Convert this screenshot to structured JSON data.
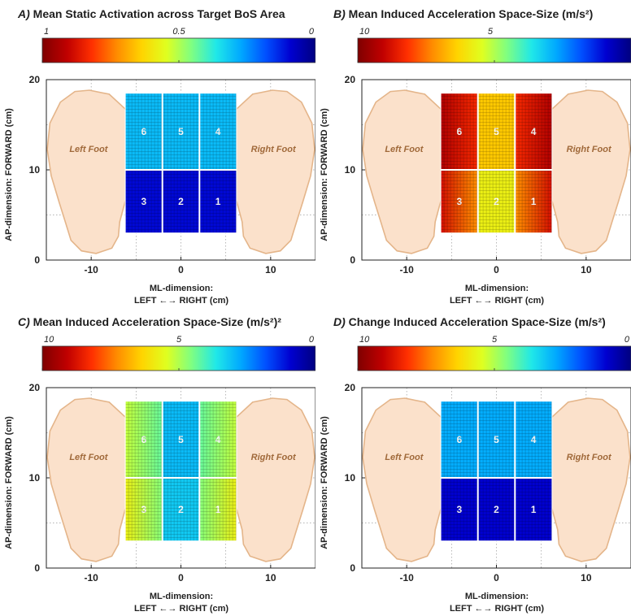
{
  "colorbar_colors": [
    "#7f0000",
    "#c00000",
    "#ff3000",
    "#ff8c00",
    "#ffd400",
    "#dfff20",
    "#80ff80",
    "#20e8e8",
    "#00a8ff",
    "#0050ff",
    "#0000d0",
    "#000080"
  ],
  "foot_labels": {
    "left": "Left Foot",
    "right": "Right Foot"
  },
  "axis_labels": {
    "y": "AP-dimension: FORWARD  (cm)",
    "x_line1": "ML-dimension:",
    "x_line2": "LEFT ←→ RIGHT (cm)"
  },
  "chart_data": [
    {
      "type": "heatmap",
      "letter": "A)",
      "title": "Mean Static Activation across Target BoS Area",
      "colorbar": {
        "ticks": [
          "1",
          "0.5",
          "0"
        ],
        "tick_values": [
          1,
          0.5,
          0
        ],
        "range": [
          1,
          0
        ]
      },
      "xlim": [
        -15,
        15
      ],
      "ylim": [
        0,
        20
      ],
      "xticks": [
        -10,
        0,
        10
      ],
      "yticks": [
        0,
        10,
        20
      ],
      "grid": true,
      "target_area": {
        "x": [
          -6.2,
          6.2
        ],
        "y": [
          3,
          18.5
        ]
      },
      "cells": [
        {
          "label": "6",
          "row": "top",
          "col": "left",
          "value": 0.3,
          "edge_value": 0.3
        },
        {
          "label": "5",
          "row": "top",
          "col": "middle",
          "value": 0.3,
          "edge_value": 0.3
        },
        {
          "label": "4",
          "row": "top",
          "col": "right",
          "value": 0.3,
          "edge_value": 0.3
        },
        {
          "label": "3",
          "row": "bottom",
          "col": "left",
          "value": 0.1,
          "edge_value": 0.1
        },
        {
          "label": "2",
          "row": "bottom",
          "col": "middle",
          "value": 0.1,
          "edge_value": 0.1
        },
        {
          "label": "1",
          "row": "bottom",
          "col": "right",
          "value": 0.1,
          "edge_value": 0.1
        }
      ]
    },
    {
      "type": "heatmap",
      "letter": "B)",
      "title": "Mean Induced Acceleration Space-Size (m/s²)",
      "colorbar": {
        "ticks": [
          "10",
          "5"
        ],
        "tick_values": [
          10,
          5
        ],
        "range": [
          10,
          0
        ]
      },
      "xlim": [
        -15,
        15
      ],
      "ylim": [
        0,
        20
      ],
      "xticks": [
        -10,
        0,
        10
      ],
      "yticks": [
        0,
        10,
        20
      ],
      "grid": true,
      "target_area": {
        "x": [
          -6.2,
          6.2
        ],
        "y": [
          3,
          18.5
        ]
      },
      "cells": [
        {
          "label": "6",
          "row": "top",
          "col": "left",
          "value": 8.3,
          "edge_value": 9.3
        },
        {
          "label": "5",
          "row": "top",
          "col": "middle",
          "value": 6.5,
          "edge_value": 6.5
        },
        {
          "label": "4",
          "row": "top",
          "col": "right",
          "value": 8.3,
          "edge_value": 9.3
        },
        {
          "label": "3",
          "row": "bottom",
          "col": "left",
          "value": 7.2,
          "edge_value": 8.8
        },
        {
          "label": "2",
          "row": "bottom",
          "col": "middle",
          "value": 5.8,
          "edge_value": 5.8
        },
        {
          "label": "1",
          "row": "bottom",
          "col": "right",
          "value": 7.2,
          "edge_value": 8.8
        }
      ]
    },
    {
      "type": "heatmap",
      "letter": "C)",
      "title": "Mean Induced Acceleration Space-Size (m/s²)²",
      "colorbar": {
        "ticks": [
          "10",
          "5",
          "0"
        ],
        "tick_values": [
          10,
          5,
          0
        ],
        "range": [
          10,
          0
        ]
      },
      "xlim": [
        -15,
        15
      ],
      "ylim": [
        0,
        20
      ],
      "xticks": [
        -10,
        0,
        10
      ],
      "yticks": [
        0,
        10,
        20
      ],
      "grid": true,
      "target_area": {
        "x": [
          -6.2,
          6.2
        ],
        "y": [
          3,
          18.5
        ]
      },
      "cells": [
        {
          "label": "6",
          "row": "top",
          "col": "left",
          "value": 4.3,
          "edge_value": 5.2
        },
        {
          "label": "5",
          "row": "top",
          "col": "middle",
          "value": 3.0,
          "edge_value": 3.0
        },
        {
          "label": "4",
          "row": "top",
          "col": "right",
          "value": 4.3,
          "edge_value": 5.2
        },
        {
          "label": "3",
          "row": "bottom",
          "col": "left",
          "value": 4.6,
          "edge_value": 5.8
        },
        {
          "label": "2",
          "row": "bottom",
          "col": "middle",
          "value": 3.2,
          "edge_value": 3.2
        },
        {
          "label": "1",
          "row": "bottom",
          "col": "right",
          "value": 4.6,
          "edge_value": 5.8
        }
      ]
    },
    {
      "type": "heatmap",
      "letter": "D)",
      "title": "Change Induced Acceleration Space-Size (m/s²)",
      "colorbar": {
        "ticks": [
          "10",
          "5",
          "0"
        ],
        "tick_values": [
          10,
          5,
          0
        ],
        "range": [
          10,
          0
        ]
      },
      "xlim": [
        -15,
        15
      ],
      "ylim": [
        0,
        20
      ],
      "xticks": [
        -10,
        0,
        10
      ],
      "yticks": [
        0,
        10,
        20
      ],
      "grid": true,
      "target_area": {
        "x": [
          -6.2,
          6.2
        ],
        "y": [
          3,
          18.5
        ]
      },
      "cells": [
        {
          "label": "6",
          "row": "top",
          "col": "left",
          "value": 2.8,
          "edge_value": 2.8
        },
        {
          "label": "5",
          "row": "top",
          "col": "middle",
          "value": 2.8,
          "edge_value": 2.8
        },
        {
          "label": "4",
          "row": "top",
          "col": "right",
          "value": 2.8,
          "edge_value": 2.8
        },
        {
          "label": "3",
          "row": "bottom",
          "col": "left",
          "value": 0.9,
          "edge_value": 0.9
        },
        {
          "label": "2",
          "row": "bottom",
          "col": "middle",
          "value": 0.9,
          "edge_value": 0.9
        },
        {
          "label": "1",
          "row": "bottom",
          "col": "right",
          "value": 0.9,
          "edge_value": 0.9
        }
      ]
    }
  ]
}
